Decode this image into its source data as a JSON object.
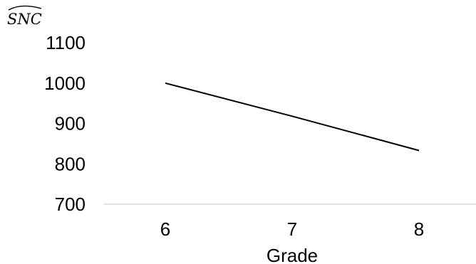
{
  "chart_data": {
    "type": "line",
    "title": "",
    "xlabel": "Grade",
    "ylabel": "SNC",
    "ylabel_hat": true,
    "categories": [
      "6",
      "7",
      "8"
    ],
    "series": [
      {
        "values": [
          1000,
          918,
          833
        ]
      }
    ],
    "yticks": [
      "1100",
      "1000",
      "900",
      "800",
      "700"
    ],
    "ylim": [
      700,
      1100
    ],
    "grid": false,
    "legend": "none",
    "line_color": "#000000",
    "axis_color": "#d9d9d9"
  }
}
